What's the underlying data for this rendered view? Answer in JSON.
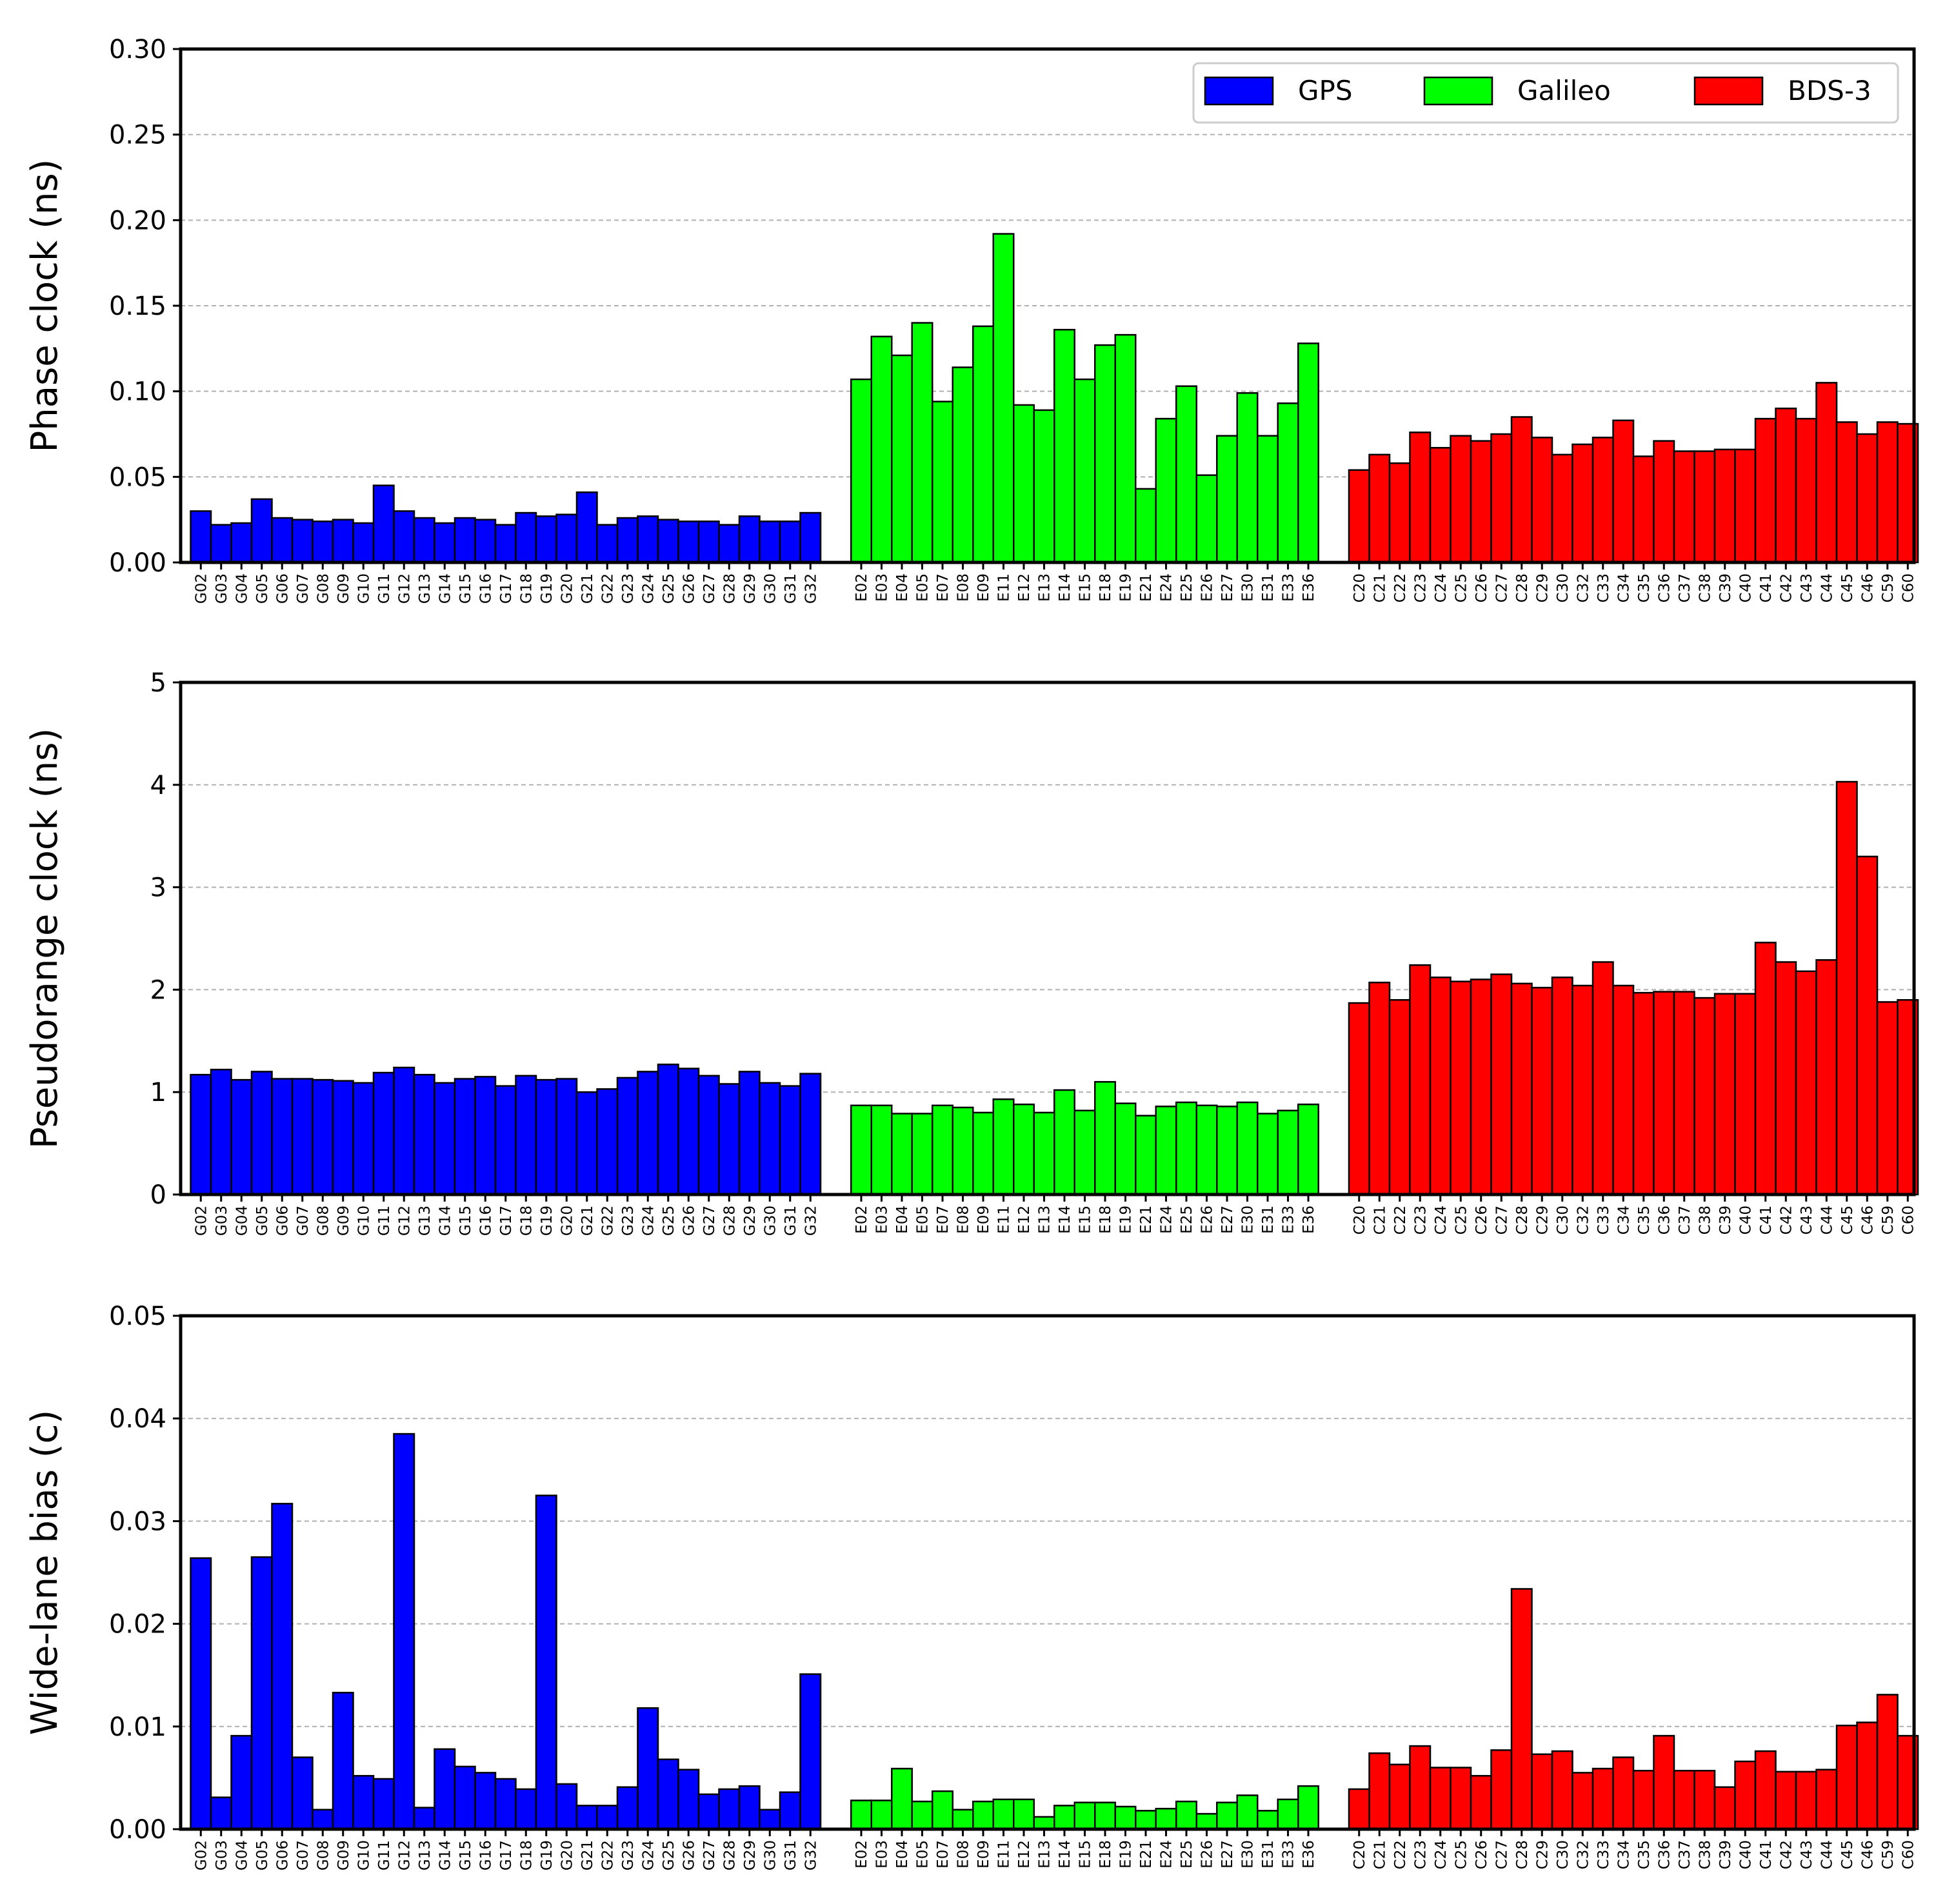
{
  "chart_data": [
    {
      "type": "bar",
      "ylabel": "Phase clock (ns)",
      "ylim": [
        0,
        0.3
      ],
      "yticks": [
        "0.00",
        "0.05",
        "0.10",
        "0.15",
        "0.20",
        "0.25",
        "0.30"
      ],
      "grid": true,
      "legend": {
        "placement": "top-right",
        "entries": [
          "GPS",
          "Galileo",
          "BDS-3"
        ]
      },
      "series": [
        {
          "name": "GPS",
          "color": "#0000ff",
          "categories": [
            "G02",
            "G03",
            "G04",
            "G05",
            "G06",
            "G07",
            "G08",
            "G09",
            "G10",
            "G11",
            "G12",
            "G13",
            "G14",
            "G15",
            "G16",
            "G17",
            "G18",
            "G19",
            "G20",
            "G21",
            "G22",
            "G23",
            "G24",
            "G25",
            "G26",
            "G27",
            "G28",
            "G29",
            "G30",
            "G31",
            "G32"
          ],
          "values": [
            0.03,
            0.022,
            0.023,
            0.037,
            0.026,
            0.025,
            0.024,
            0.025,
            0.023,
            0.045,
            0.03,
            0.026,
            0.023,
            0.026,
            0.025,
            0.022,
            0.029,
            0.027,
            0.028,
            0.041,
            0.022,
            0.026,
            0.027,
            0.025,
            0.024,
            0.024,
            0.022,
            0.027,
            0.024,
            0.024,
            0.029
          ]
        },
        {
          "name": "Galileo",
          "color": "#00ff00",
          "categories": [
            "E02",
            "E03",
            "E04",
            "E05",
            "E07",
            "E08",
            "E09",
            "E11",
            "E12",
            "E13",
            "E14",
            "E15",
            "E18",
            "E19",
            "E21",
            "E24",
            "E25",
            "E26",
            "E27",
            "E30",
            "E31",
            "E33",
            "E36"
          ],
          "values": [
            0.107,
            0.132,
            0.121,
            0.14,
            0.094,
            0.114,
            0.138,
            0.192,
            0.092,
            0.089,
            0.136,
            0.107,
            0.127,
            0.133,
            0.043,
            0.084,
            0.103,
            0.051,
            0.074,
            0.099,
            0.074,
            0.093,
            0.128
          ]
        },
        {
          "name": "BDS-3",
          "color": "#ff0000",
          "categories": [
            "C20",
            "C21",
            "C22",
            "C23",
            "C24",
            "C25",
            "C26",
            "C27",
            "C28",
            "C29",
            "C30",
            "C32",
            "C33",
            "C34",
            "C35",
            "C36",
            "C37",
            "C38",
            "C39",
            "C40",
            "C41",
            "C42",
            "C43",
            "C44",
            "C45",
            "C46",
            "C59",
            "C60"
          ],
          "values": [
            0.054,
            0.063,
            0.058,
            0.076,
            0.067,
            0.074,
            0.071,
            0.075,
            0.085,
            0.073,
            0.063,
            0.069,
            0.073,
            0.083,
            0.062,
            0.071,
            0.065,
            0.065,
            0.066,
            0.066,
            0.084,
            0.09,
            0.084,
            0.105,
            0.082,
            0.075,
            0.082,
            0.081
          ]
        }
      ]
    },
    {
      "type": "bar",
      "ylabel": "Pseudorange clock (ns)",
      "ylim": [
        0,
        5
      ],
      "yticks": [
        "0",
        "1",
        "2",
        "3",
        "4",
        "5"
      ],
      "grid": true,
      "series": [
        {
          "name": "GPS",
          "color": "#0000ff",
          "categories": [
            "G02",
            "G03",
            "G04",
            "G05",
            "G06",
            "G07",
            "G08",
            "G09",
            "G10",
            "G11",
            "G12",
            "G13",
            "G14",
            "G15",
            "G16",
            "G17",
            "G18",
            "G19",
            "G20",
            "G21",
            "G22",
            "G23",
            "G24",
            "G25",
            "G26",
            "G27",
            "G28",
            "G29",
            "G30",
            "G31",
            "G32"
          ],
          "values": [
            1.17,
            1.22,
            1.12,
            1.2,
            1.13,
            1.13,
            1.12,
            1.11,
            1.09,
            1.19,
            1.24,
            1.17,
            1.09,
            1.13,
            1.15,
            1.06,
            1.16,
            1.12,
            1.13,
            1.0,
            1.03,
            1.14,
            1.2,
            1.27,
            1.23,
            1.16,
            1.08,
            1.2,
            1.09,
            1.06,
            1.18
          ]
        },
        {
          "name": "Galileo",
          "color": "#00ff00",
          "categories": [
            "E02",
            "E03",
            "E04",
            "E05",
            "E07",
            "E08",
            "E09",
            "E11",
            "E12",
            "E13",
            "E14",
            "E15",
            "E18",
            "E19",
            "E21",
            "E24",
            "E25",
            "E26",
            "E27",
            "E30",
            "E31",
            "E33",
            "E36"
          ],
          "values": [
            0.87,
            0.87,
            0.79,
            0.79,
            0.87,
            0.85,
            0.8,
            0.93,
            0.88,
            0.8,
            1.02,
            0.82,
            1.1,
            0.89,
            0.77,
            0.86,
            0.9,
            0.87,
            0.86,
            0.9,
            0.79,
            0.82,
            0.88
          ]
        },
        {
          "name": "BDS-3",
          "color": "#ff0000",
          "categories": [
            "C20",
            "C21",
            "C22",
            "C23",
            "C24",
            "C25",
            "C26",
            "C27",
            "C28",
            "C29",
            "C30",
            "C32",
            "C33",
            "C34",
            "C35",
            "C36",
            "C37",
            "C38",
            "C39",
            "C40",
            "C41",
            "C42",
            "C43",
            "C44",
            "C45",
            "C46",
            "C59",
            "C60"
          ],
          "values": [
            1.87,
            2.07,
            1.9,
            2.24,
            2.12,
            2.08,
            2.1,
            2.15,
            2.06,
            2.02,
            2.12,
            2.04,
            2.27,
            2.04,
            1.97,
            1.98,
            1.98,
            1.92,
            1.96,
            1.96,
            2.46,
            2.27,
            2.18,
            2.29,
            4.03,
            3.3,
            1.88,
            1.9
          ]
        }
      ]
    },
    {
      "type": "bar",
      "ylabel": "Wide-lane bias (c)",
      "ylim": [
        0,
        0.05
      ],
      "yticks": [
        "0.00",
        "0.01",
        "0.02",
        "0.03",
        "0.04",
        "0.05"
      ],
      "grid": true,
      "series": [
        {
          "name": "GPS",
          "color": "#0000ff",
          "categories": [
            "G02",
            "G03",
            "G04",
            "G05",
            "G06",
            "G07",
            "G08",
            "G09",
            "G10",
            "G11",
            "G12",
            "G13",
            "G14",
            "G15",
            "G16",
            "G17",
            "G18",
            "G19",
            "G20",
            "G21",
            "G22",
            "G23",
            "G24",
            "G25",
            "G26",
            "G27",
            "G28",
            "G29",
            "G30",
            "G31",
            "G32"
          ],
          "values": [
            0.0264,
            0.0031,
            0.0091,
            0.0265,
            0.0317,
            0.007,
            0.0019,
            0.0133,
            0.0052,
            0.0049,
            0.0385,
            0.0021,
            0.0078,
            0.0061,
            0.0055,
            0.0049,
            0.0039,
            0.0325,
            0.0044,
            0.0023,
            0.0023,
            0.0041,
            0.0118,
            0.0068,
            0.0058,
            0.0034,
            0.0039,
            0.0042,
            0.0019,
            0.0036,
            0.0151
          ]
        },
        {
          "name": "Galileo",
          "color": "#00ff00",
          "categories": [
            "E02",
            "E03",
            "E04",
            "E05",
            "E07",
            "E08",
            "E09",
            "E11",
            "E12",
            "E13",
            "E14",
            "E15",
            "E18",
            "E19",
            "E21",
            "E24",
            "E25",
            "E26",
            "E27",
            "E30",
            "E31",
            "E33",
            "E36"
          ],
          "values": [
            0.0028,
            0.0028,
            0.0059,
            0.0027,
            0.0037,
            0.0019,
            0.0027,
            0.0029,
            0.0029,
            0.0012,
            0.0023,
            0.0026,
            0.0026,
            0.0022,
            0.0018,
            0.002,
            0.0027,
            0.0015,
            0.0026,
            0.0033,
            0.0018,
            0.0029,
            0.0042
          ]
        },
        {
          "name": "BDS-3",
          "color": "#ff0000",
          "categories": [
            "C20",
            "C21",
            "C22",
            "C23",
            "C24",
            "C25",
            "C26",
            "C27",
            "C28",
            "C29",
            "C30",
            "C32",
            "C33",
            "C34",
            "C35",
            "C36",
            "C37",
            "C38",
            "C39",
            "C40",
            "C41",
            "C42",
            "C43",
            "C44",
            "C45",
            "C46",
            "C59",
            "C60"
          ],
          "values": [
            0.0039,
            0.0074,
            0.0063,
            0.0081,
            0.006,
            0.006,
            0.0052,
            0.0077,
            0.0234,
            0.0073,
            0.0076,
            0.0055,
            0.0059,
            0.007,
            0.0057,
            0.0091,
            0.0057,
            0.0057,
            0.0041,
            0.0066,
            0.0076,
            0.0056,
            0.0056,
            0.0058,
            0.0101,
            0.0104,
            0.0131,
            0.0091
          ]
        }
      ]
    }
  ]
}
